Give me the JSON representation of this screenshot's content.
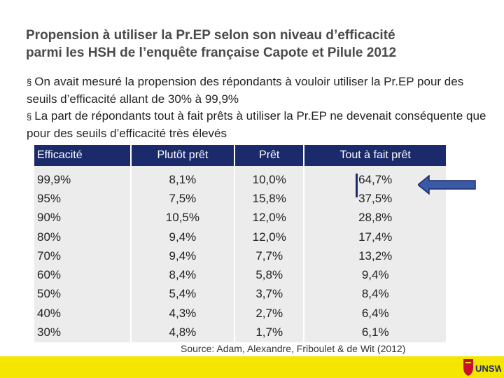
{
  "title": {
    "line1": "Propension à utiliser la Pr.EP selon son niveau d’efficacité",
    "line2": "parmi les HSH de l’enquête française Capote et Pilule 2012"
  },
  "bullets": [
    "On avait mesuré la propension des répondants à vouloir utiliser la Pr.EP pour des seuils d’efficacité allant de 30% à 99,9%",
    "La part de répondants tout à fait prêts à utiliser la Pr.EP ne devenait conséquente que pour des seuils d’efficacité très élevés"
  ],
  "bullet_marker": "§",
  "table": {
    "headers": [
      "Efficacité",
      "Plutôt prêt",
      "Prêt",
      "Tout à fait prêt"
    ],
    "rows": [
      [
        "99,9%",
        "8,1%",
        "10,0%",
        "64,7%"
      ],
      [
        "95%",
        "7,5%",
        "15,8%",
        "37,5%"
      ],
      [
        "90%",
        "10,5%",
        "12,0%",
        "28,8%"
      ],
      [
        "80%",
        "9,4%",
        "12,0%",
        "17,4%"
      ],
      [
        "70%",
        "9,4%",
        "7,7%",
        "13,2%"
      ],
      [
        "60%",
        "8,4%",
        "5,8%",
        "9,4%"
      ],
      [
        "50%",
        "5,4%",
        "3,7%",
        "8,4%"
      ],
      [
        "40%",
        "4,3%",
        "2,7%",
        "6,4%"
      ],
      [
        "30%",
        "4,8%",
        "1,7%",
        "6,1%"
      ]
    ]
  },
  "source": "Source: Adam, Alexandre, Friboulet & de Wit (2012)",
  "logo": {
    "text": "UNSW",
    "colors": {
      "crest": "#c8102e",
      "text": "#1b2a6b"
    }
  },
  "colors": {
    "header_bg": "#1b2a6b",
    "cell_bg": "#ececec",
    "footer": "#f5e600",
    "arrow": "#3a5aa8"
  }
}
